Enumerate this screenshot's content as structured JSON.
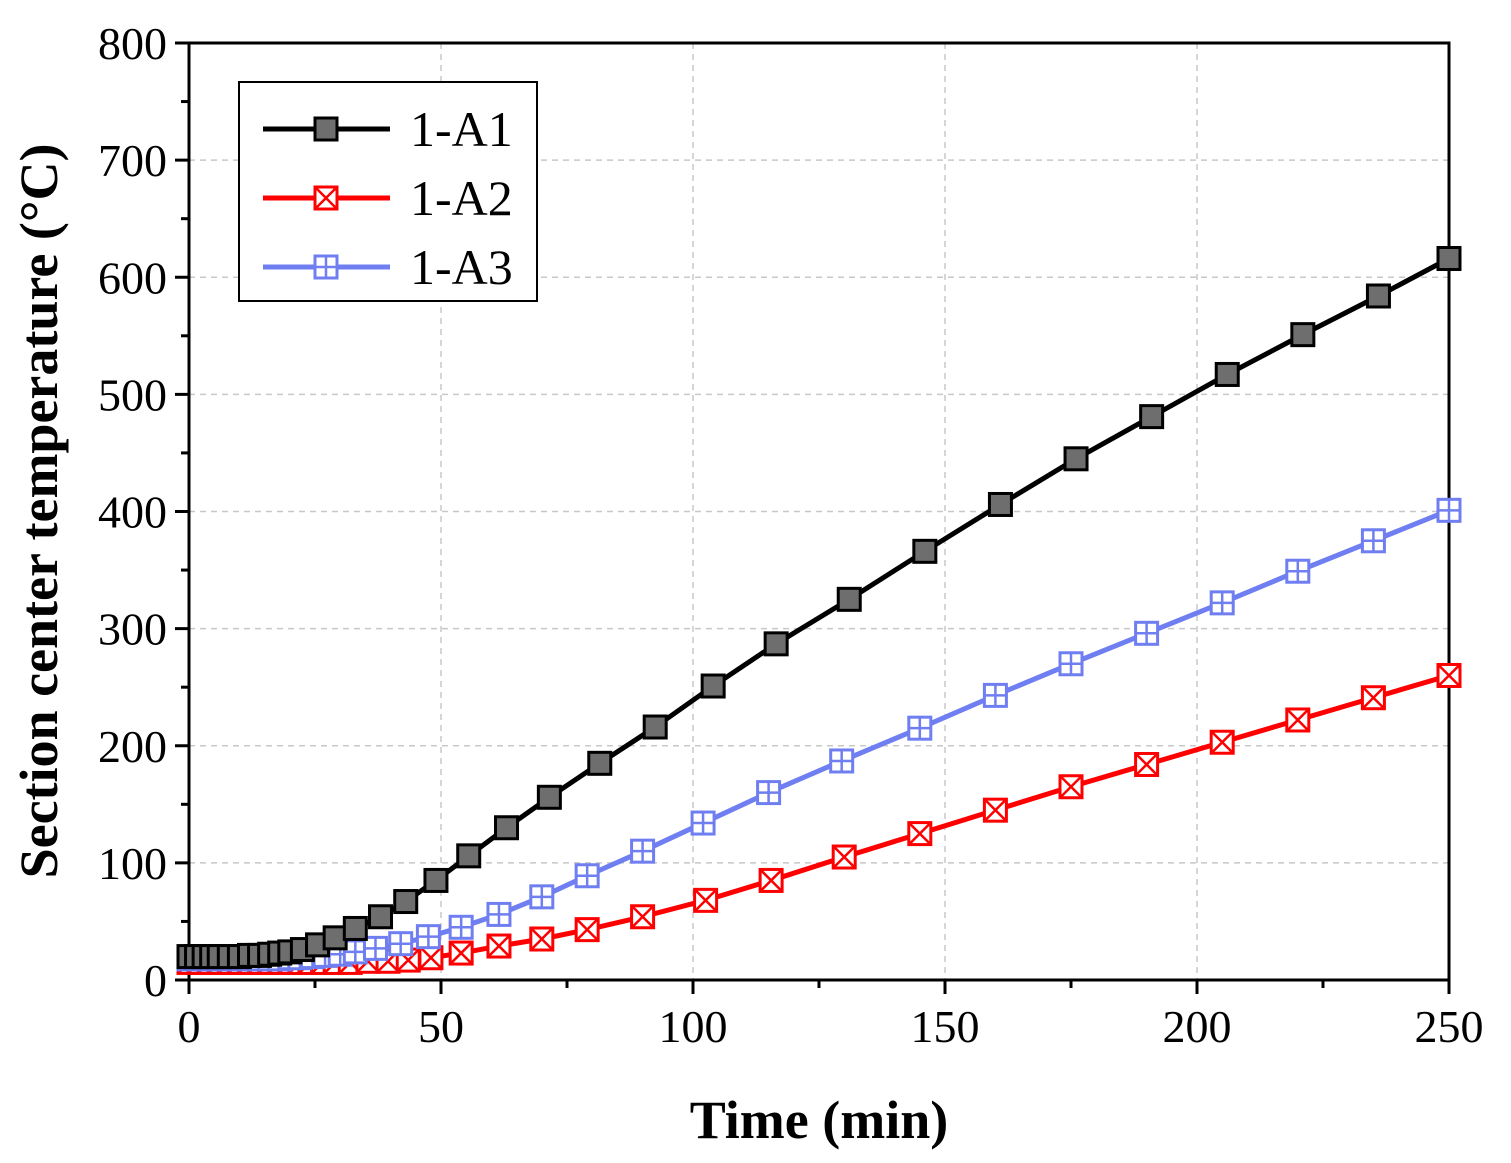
{
  "chart_data": {
    "type": "line",
    "title": "",
    "xlabel": "Time (min)",
    "ylabel": "Section center temperature (°C)",
    "xlim": [
      0,
      250
    ],
    "ylim": [
      0,
      800
    ],
    "xticks": [
      0,
      50,
      100,
      150,
      200,
      250
    ],
    "yticks": [
      0,
      100,
      200,
      300,
      400,
      500,
      600,
      700,
      800
    ],
    "grid": true,
    "legend": "top-left",
    "series": [
      {
        "name": "1-A1",
        "color": "#000000",
        "marker": "filled-square",
        "marker_fill": "#6e6e6e",
        "x": [
          0,
          1.5,
          3,
          4.5,
          6,
          8,
          10,
          12,
          14,
          16,
          18,
          20,
          22.5,
          25.5,
          29,
          33,
          38,
          43,
          49,
          55.5,
          63,
          71.5,
          81.5,
          92.5,
          104,
          116.5,
          131,
          146,
          161,
          176,
          191,
          206,
          221,
          236,
          250
        ],
        "y": [
          20,
          20,
          20,
          20,
          20,
          20,
          20,
          21,
          21,
          22,
          23,
          24,
          26,
          30,
          36,
          44,
          54,
          67,
          85,
          106,
          130,
          156,
          185,
          216,
          251,
          287,
          325,
          366,
          406,
          445,
          481,
          517,
          551,
          584,
          616
        ]
      },
      {
        "name": "1-A2",
        "color": "#ff0000",
        "marker": "crossed-square",
        "marker_fill": "#ffffff",
        "x": [
          0,
          2,
          4,
          6,
          8,
          10,
          12,
          14,
          16,
          18,
          20,
          22,
          24,
          26.5,
          29,
          32,
          35.5,
          39.5,
          43.5,
          48,
          54,
          61.5,
          70,
          79,
          90,
          102.5,
          115.5,
          130,
          145,
          160,
          175,
          190,
          205,
          220,
          235,
          250
        ],
        "y": [
          15,
          15,
          15,
          15,
          15,
          15,
          15,
          15,
          15,
          15,
          15,
          15,
          15,
          15,
          15,
          15,
          16,
          16,
          17,
          19,
          23,
          29,
          35,
          43,
          54,
          68,
          85,
          105,
          125,
          145,
          165,
          184,
          203,
          222,
          241,
          260
        ]
      },
      {
        "name": "1-A3",
        "color": "#6f7ef0",
        "marker": "grid-square",
        "marker_fill": "#ffffff",
        "x": [
          0,
          2,
          4,
          6,
          8,
          10,
          12,
          14,
          16,
          18,
          20,
          22,
          24.5,
          27,
          30,
          33,
          37,
          42,
          47.5,
          54,
          61.5,
          70,
          79,
          90,
          102,
          115,
          129.5,
          145,
          160,
          175,
          190,
          205,
          220,
          235,
          250
        ],
        "y": [
          18,
          18,
          18,
          18,
          18,
          18,
          18,
          18,
          18,
          18,
          19,
          19,
          20,
          21,
          22,
          24,
          27,
          31,
          37,
          45,
          56,
          71,
          89,
          110,
          134,
          160,
          187,
          215,
          243,
          270,
          296,
          322,
          349,
          375,
          401
        ]
      }
    ]
  }
}
